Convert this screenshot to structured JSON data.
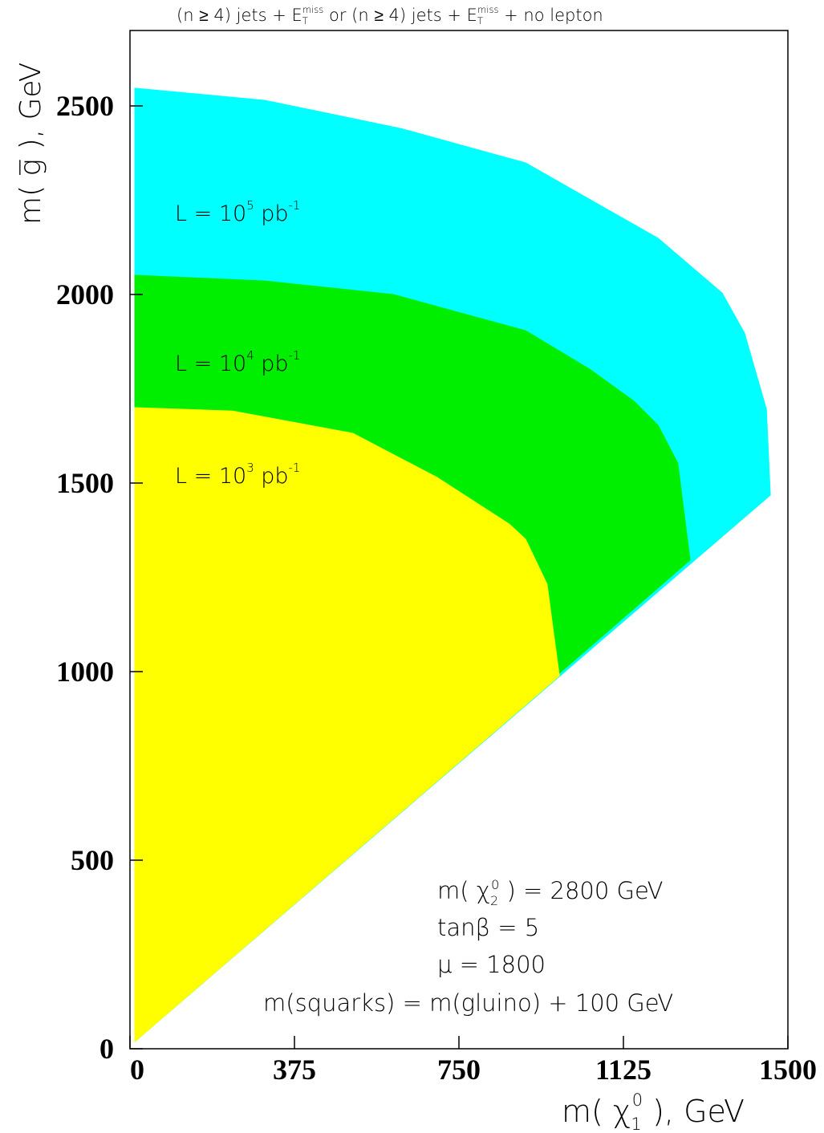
{
  "chart_data": {
    "type": "area",
    "title": [
      "(n ≥ 4) jets + E",
      "T",
      "miss",
      "  or (n ≥ 4) jets + E",
      "T",
      "miss",
      " + no lepton"
    ],
    "x_label": [
      "m( χ",
      "1",
      "0",
      " ),   GeV"
    ],
    "y_label": "m( g̅ ), GeV",
    "xlim": [
      0,
      1500
    ],
    "ylim": [
      0,
      2700
    ],
    "xticks": [
      0,
      375,
      750,
      1125,
      1500
    ],
    "yticks": [
      0,
      500,
      1000,
      1500,
      2000,
      2500
    ],
    "series": [
      {
        "label": [
          "L  = 10",
          "5",
          " pb",
          "-1"
        ],
        "color": "#00ffff",
        "x": [
          11,
          307,
          618,
          902,
          1204,
          1350,
          1401,
          1451,
          1460,
          11
        ],
        "values": [
          2547,
          2515,
          2440,
          2349,
          2149,
          2004,
          1898,
          1696,
          1468,
          19
        ]
      },
      {
        "label": [
          "L  = 10",
          "4",
          " pb",
          "-1"
        ],
        "color": "#00ee00",
        "x": [
          11,
          307,
          600,
          902,
          1048,
          1149,
          1204,
          1249,
          1277,
          11
        ],
        "values": [
          2051,
          2036,
          2000,
          1904,
          1802,
          1717,
          1653,
          1553,
          1296,
          19
        ]
      },
      {
        "label": [
          "L  = 10",
          "3",
          " pb",
          "-1"
        ],
        "color": "#ffff00",
        "x": [
          11,
          234,
          508,
          700,
          865,
          902,
          951,
          966,
          979,
          11
        ],
        "values": [
          1700,
          1691,
          1632,
          1515,
          1391,
          1351,
          1232,
          1100,
          989,
          19
        ]
      }
    ],
    "annotations": [
      [
        "m( χ",
        "2",
        "0",
        " ) = 2800 GeV"
      ],
      "tanβ = 5",
      "μ = 1800",
      "m(squarks) = m(gluino) + 100 GeV"
    ]
  }
}
